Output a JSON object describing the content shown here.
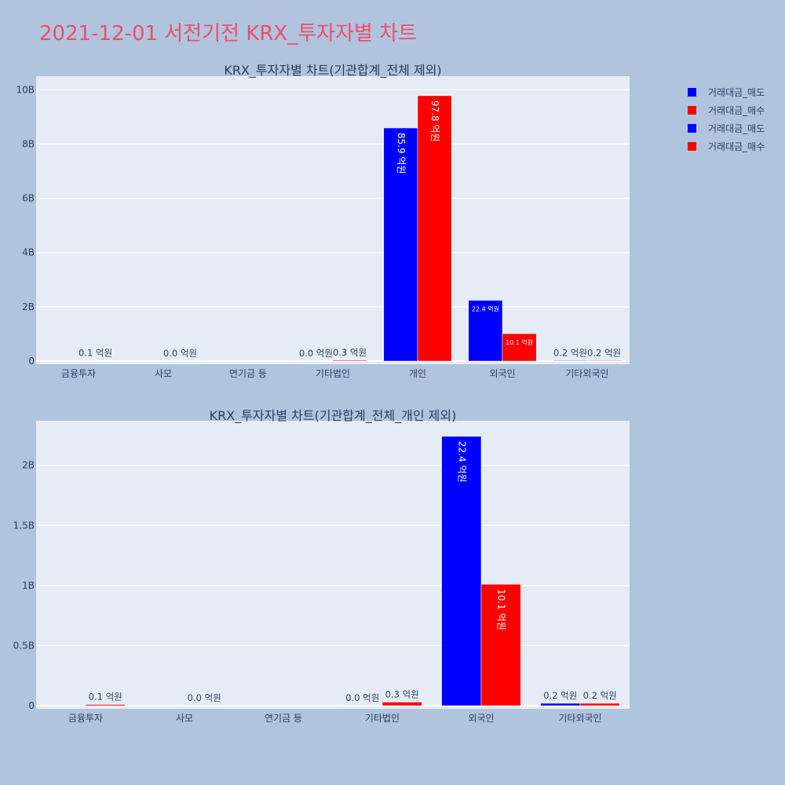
{
  "page_title": "2021-12-01 서전기전 KRX_투자자별 차트",
  "legend": {
    "items": [
      {
        "label": "거래대금_매도",
        "color": "#0000ff"
      },
      {
        "label": "거래대금_매수",
        "color": "#ff0000"
      },
      {
        "label": "거래대금_매도",
        "color": "#0000ff"
      },
      {
        "label": "거래대금_매수",
        "color": "#ff0000"
      }
    ]
  },
  "chart_data": [
    {
      "type": "bar",
      "title": "KRX_투자자별 차트(기관합계_전체 제외)",
      "categories": [
        "금융투자",
        "사모",
        "연기금 등",
        "기타법인",
        "개인",
        "외국인",
        "기타외국인"
      ],
      "ylim": [
        0,
        10.5
      ],
      "yticks": [
        0,
        2,
        4,
        6,
        8,
        10
      ],
      "ytick_labels": [
        "0",
        "2B",
        "4B",
        "6B",
        "8B",
        "10B"
      ],
      "grid": true,
      "series": [
        {
          "name": "거래대금_매도",
          "color": "#0000ff",
          "values": [
            0.0,
            0.0,
            0.0,
            0.001,
            8.59,
            2.24,
            0.02
          ],
          "labels": [
            "",
            "",
            "",
            "0.0 억원",
            "85.9 억원",
            "22.4 억원",
            "0.2 억원"
          ]
        },
        {
          "name": "거래대금_매수",
          "color": "#ff0000",
          "values": [
            0.01,
            0.001,
            0.0,
            0.03,
            9.78,
            1.01,
            0.02
          ],
          "labels": [
            "0.1 억원",
            "0.0 억원",
            "",
            "0.3 억원",
            "97.8 억원",
            "10.1 억원",
            "0.2 억원"
          ]
        }
      ]
    },
    {
      "type": "bar",
      "title": "KRX_투자자별 차트(기관합계_전체_개인 제외)",
      "categories": [
        "금융투자",
        "사모",
        "연기금 등",
        "기타법인",
        "외국인",
        "기타외국인"
      ],
      "ylim": [
        0,
        2.37
      ],
      "yticks": [
        0,
        0.5,
        1,
        1.5,
        2
      ],
      "ytick_labels": [
        "0",
        "0.5B",
        "1B",
        "1.5B",
        "2B"
      ],
      "grid": true,
      "series": [
        {
          "name": "거래대금_매도",
          "color": "#0000ff",
          "values": [
            0.0,
            0.0,
            0.0,
            0.001,
            2.24,
            0.02
          ],
          "labels": [
            "",
            "",
            "",
            "0.0 억원",
            "22.4 억원",
            "0.2 억원"
          ]
        },
        {
          "name": "거래대금_매수",
          "color": "#ff0000",
          "values": [
            0.01,
            0.001,
            0.0,
            0.03,
            1.01,
            0.02
          ],
          "labels": [
            "0.1 억원",
            "0.0 억원",
            "",
            "0.3 억원",
            "10.1 억원",
            "0.2 억원"
          ]
        }
      ]
    }
  ]
}
